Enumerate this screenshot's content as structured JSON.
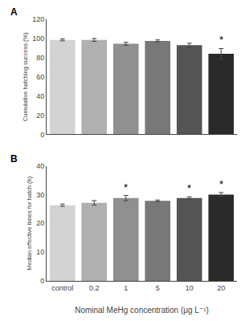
{
  "chart_data": [
    {
      "type": "bar",
      "title": "A",
      "categories": [
        "control",
        "0.2",
        "1",
        "5",
        "10",
        "20"
      ],
      "values": [
        98.5,
        98.5,
        94.5,
        97.5,
        93.0,
        84.0
      ],
      "errors": [
        1.0,
        1.5,
        1.5,
        1.0,
        2.0,
        5.5
      ],
      "colors": [
        "#d3d3d3",
        "#b0b0b0",
        "#909090",
        "#787878",
        "#555555",
        "#2a2a2a"
      ],
      "ylabel": "Cumulative hatching success (%)",
      "ylim": [
        0,
        120
      ],
      "yticks": [
        0,
        20,
        40,
        60,
        80,
        100,
        120
      ],
      "grid": false,
      "tick_labels": "y",
      "annotations": [
        {
          "category": "20",
          "text": "*"
        }
      ]
    },
    {
      "type": "bar",
      "title": "B",
      "categories": [
        "control",
        "0.2",
        "1",
        "5",
        "10",
        "20"
      ],
      "values": [
        26.3,
        27.1,
        28.8,
        27.8,
        28.8,
        30.0
      ],
      "errors": [
        0.4,
        0.8,
        0.9,
        0.3,
        0.4,
        0.7
      ],
      "colors": [
        "#d3d3d3",
        "#b0b0b0",
        "#909090",
        "#787878",
        "#555555",
        "#2a2a2a"
      ],
      "xlabel": "Nominal MeHg concentration (μg L⁻¹)",
      "ylabel": "Median effective times for hatch (h)",
      "ylim": [
        0,
        40
      ],
      "yticks": [
        0,
        10,
        20,
        30,
        40
      ],
      "grid": false,
      "annotations": [
        {
          "category": "1",
          "text": "*"
        },
        {
          "category": "10",
          "text": "*"
        },
        {
          "category": "20",
          "text": "*"
        }
      ]
    }
  ]
}
